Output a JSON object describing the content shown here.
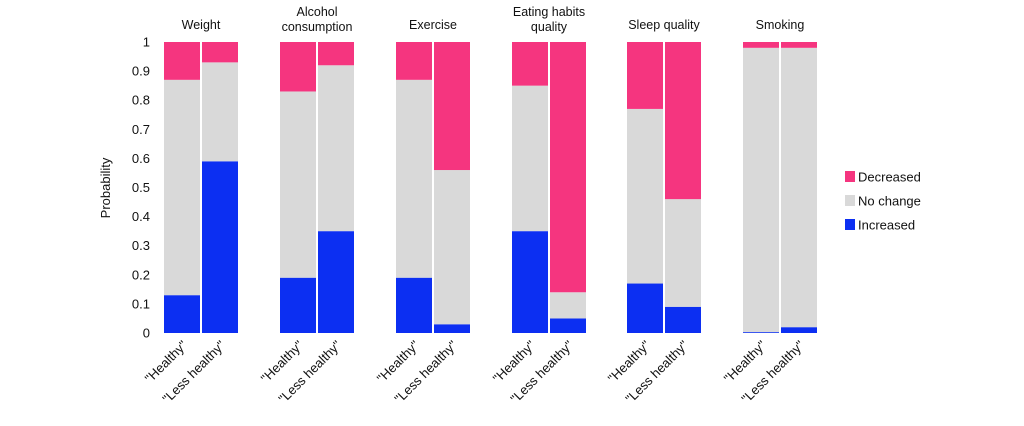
{
  "chart_data": {
    "type": "bar",
    "stacked": true,
    "ylabel": "Probability",
    "ylim": [
      0,
      1
    ],
    "yticks": [
      "0",
      "0.1",
      "0.2",
      "0.3",
      "0.4",
      "0.5",
      "0.6",
      "0.7",
      "0.8",
      "0.9",
      "1"
    ],
    "legend_position": "right",
    "legend": [
      {
        "name": "Decreased",
        "color": "#f5357f"
      },
      {
        "name": "No change",
        "color": "#d9d9d9"
      },
      {
        "name": "Increased",
        "color": "#0c2ff2"
      }
    ],
    "categories": [
      "\"Healthy\"",
      "\"Less healthy\""
    ],
    "groups": [
      {
        "title_lines": [
          "Weight"
        ],
        "bars": [
          {
            "category": "\"Healthy\"",
            "increased": 0.13,
            "no_change": 0.74,
            "decreased": 0.13
          },
          {
            "category": "\"Less healthy\"",
            "increased": 0.59,
            "no_change": 0.34,
            "decreased": 0.07
          }
        ]
      },
      {
        "title_lines": [
          "Alcohol",
          "consumption"
        ],
        "bars": [
          {
            "category": "\"Healthy\"",
            "increased": 0.19,
            "no_change": 0.64,
            "decreased": 0.17
          },
          {
            "category": "\"Less healthy\"",
            "increased": 0.35,
            "no_change": 0.57,
            "decreased": 0.08
          }
        ]
      },
      {
        "title_lines": [
          "Exercise"
        ],
        "bars": [
          {
            "category": "\"Healthy\"",
            "increased": 0.19,
            "no_change": 0.68,
            "decreased": 0.13
          },
          {
            "category": "\"Less healthy\"",
            "increased": 0.03,
            "no_change": 0.53,
            "decreased": 0.44
          }
        ]
      },
      {
        "title_lines": [
          "Eating habits",
          "quality"
        ],
        "bars": [
          {
            "category": "\"Healthy\"",
            "increased": 0.35,
            "no_change": 0.5,
            "decreased": 0.15
          },
          {
            "category": "\"Less healthy\"",
            "increased": 0.05,
            "no_change": 0.09,
            "decreased": 0.86
          }
        ]
      },
      {
        "title_lines": [
          "Sleep quality"
        ],
        "bars": [
          {
            "category": "\"Healthy\"",
            "increased": 0.17,
            "no_change": 0.6,
            "decreased": 0.23
          },
          {
            "category": "\"Less healthy\"",
            "increased": 0.09,
            "no_change": 0.37,
            "decreased": 0.54
          }
        ]
      },
      {
        "title_lines": [
          "Smoking"
        ],
        "bars": [
          {
            "category": "\"Healthy\"",
            "increased": 0.003,
            "no_change": 0.977,
            "decreased": 0.02
          },
          {
            "category": "\"Less healthy\"",
            "increased": 0.02,
            "no_change": 0.96,
            "decreased": 0.02
          }
        ]
      }
    ]
  }
}
